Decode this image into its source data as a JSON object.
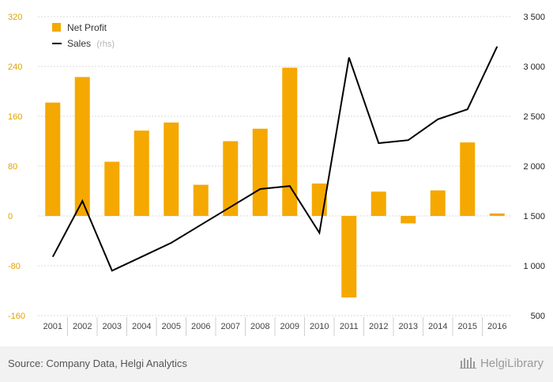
{
  "chart_data": {
    "type": "bar",
    "categories": [
      "2001",
      "2002",
      "2003",
      "2004",
      "2005",
      "2006",
      "2007",
      "2008",
      "2009",
      "2010",
      "2011",
      "2012",
      "2013",
      "2014",
      "2015",
      "2016"
    ],
    "series": [
      {
        "name": "Net Profit",
        "axis": "left",
        "type": "bar",
        "color": "#f5a800",
        "values": [
          182,
          223,
          87,
          137,
          150,
          50,
          120,
          140,
          238,
          52,
          -131,
          39,
          -12,
          41,
          118,
          4
        ]
      },
      {
        "name": "Sales",
        "name_suffix": "(rhs)",
        "axis": "right",
        "type": "line",
        "color": "#000000",
        "values": [
          1090,
          1650,
          950,
          1090,
          1230,
          1410,
          1590,
          1770,
          1800,
          1330,
          3090,
          2230,
          2260,
          2470,
          2570,
          3200
        ]
      }
    ],
    "y_left": {
      "ylim": [
        -160,
        320
      ],
      "ticks": [
        "320",
        "240",
        "160",
        "80",
        "0",
        "-80",
        "-160"
      ],
      "tick_values": [
        320,
        240,
        160,
        80,
        0,
        -80,
        -160
      ]
    },
    "y_right": {
      "ylim": [
        500,
        3500
      ],
      "ticks": [
        "3 500",
        "3 000",
        "2 500",
        "2 000",
        "1 500",
        "1 000",
        "500"
      ],
      "tick_values": [
        3500,
        3000,
        2500,
        2000,
        1500,
        1000,
        500
      ]
    },
    "grid": "horizontal",
    "legend": "top-left"
  },
  "footer": {
    "source": "Source: Company Data, Helgi Analytics",
    "brand": "HelgiLibrary"
  }
}
